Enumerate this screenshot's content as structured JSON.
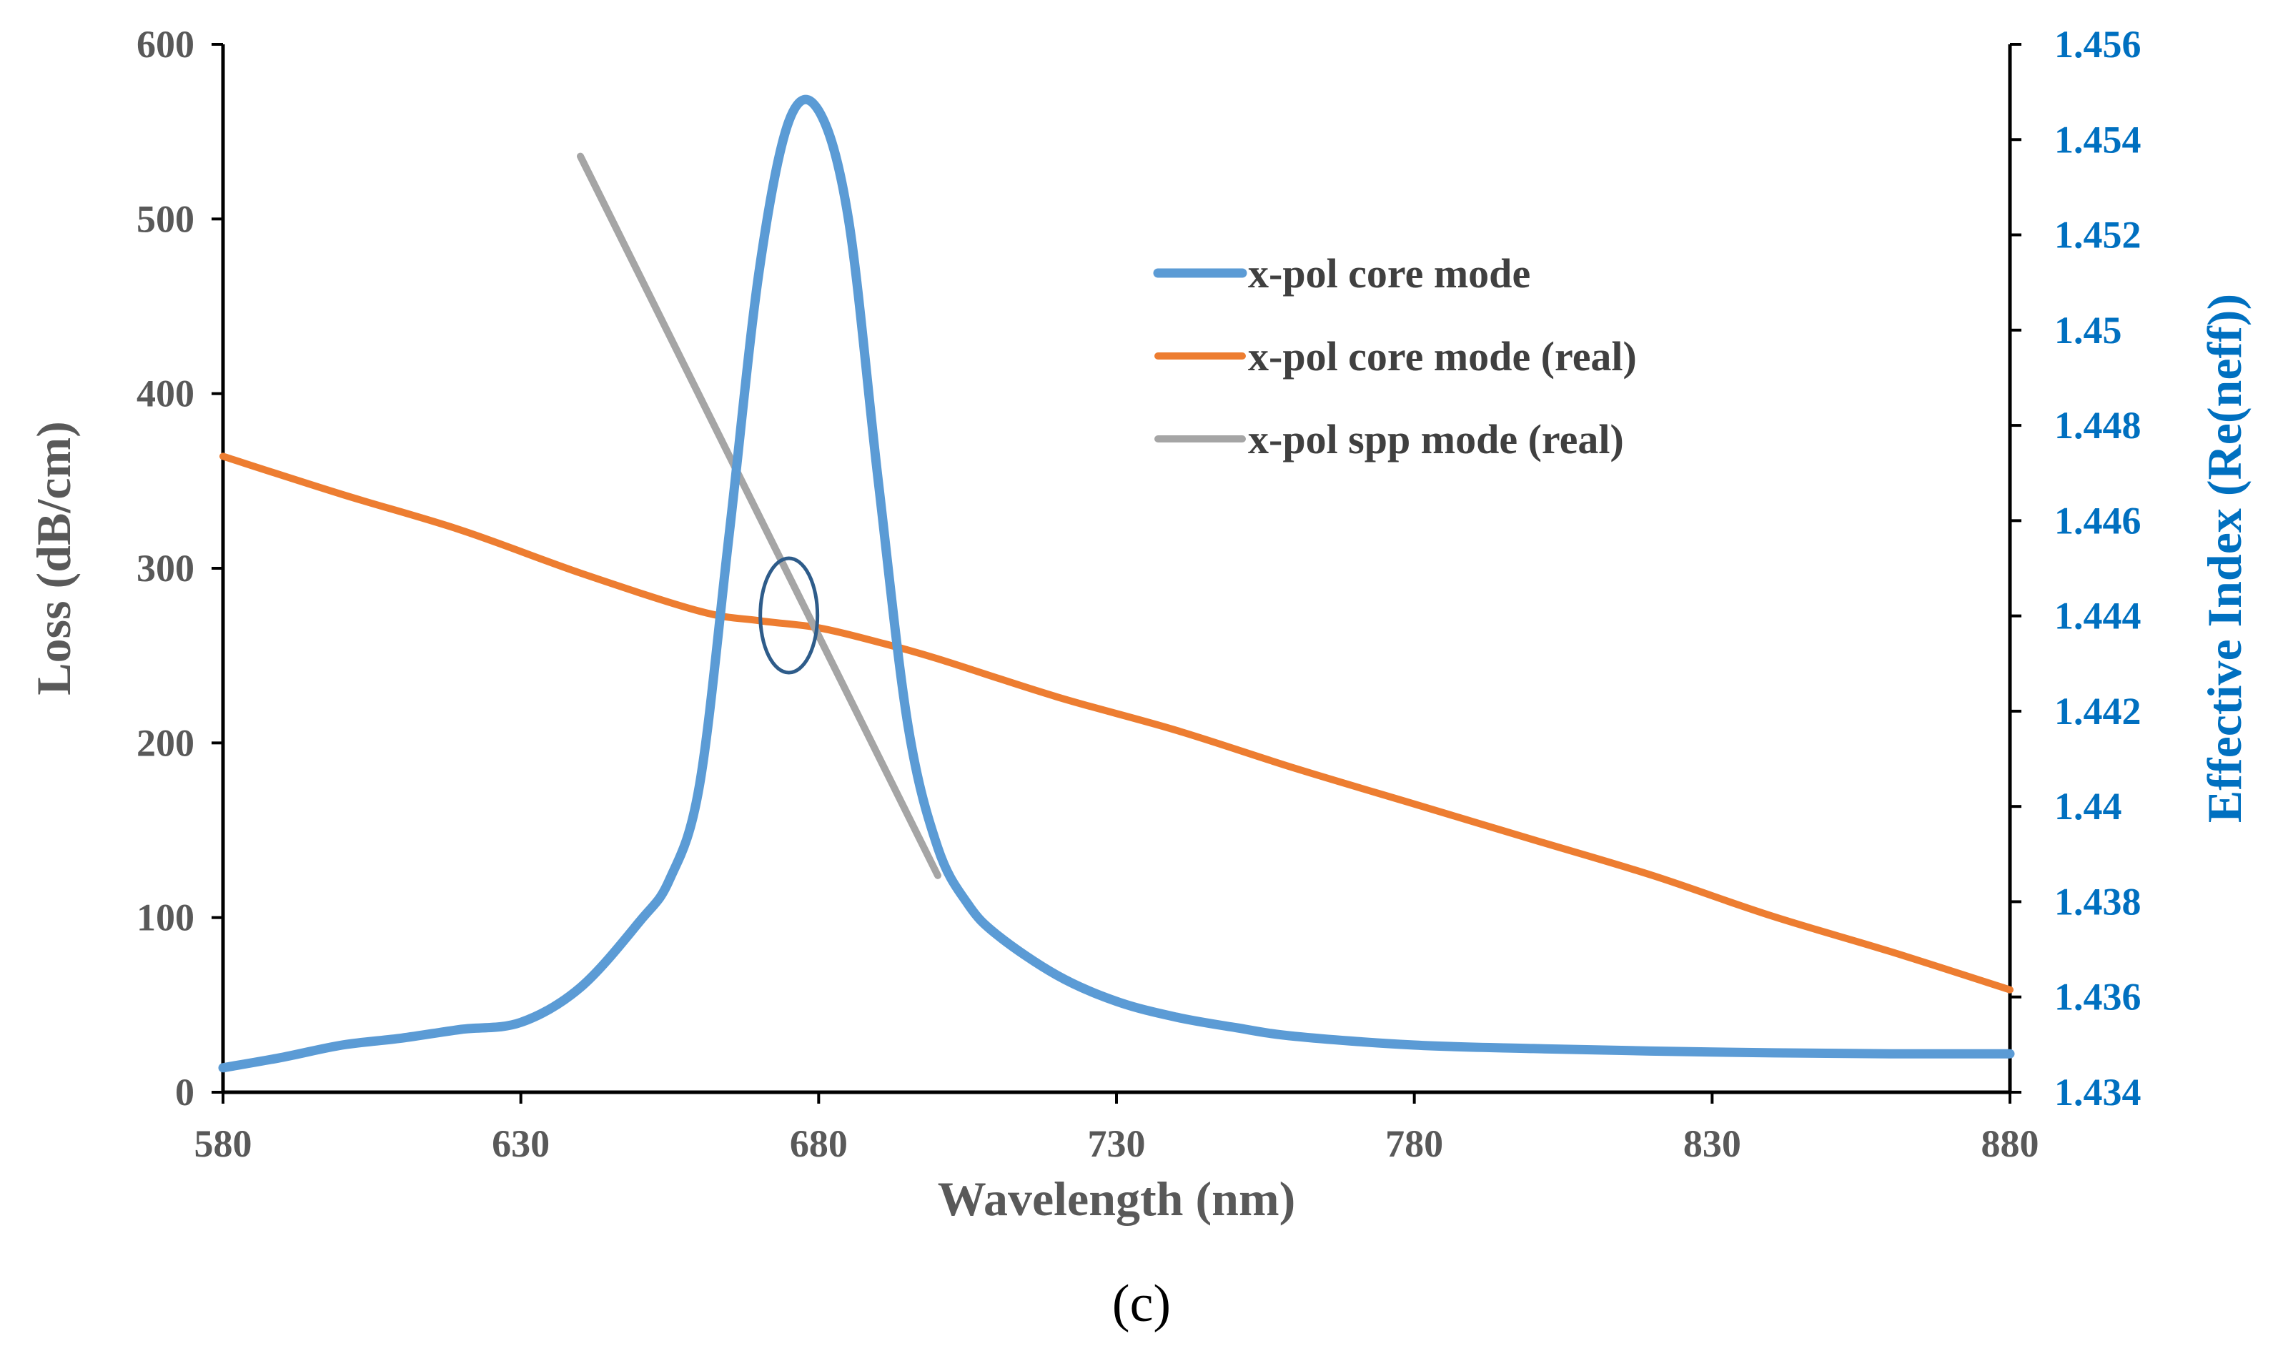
{
  "chart_data": {
    "type": "line",
    "caption": "(c)",
    "xlabel": "Wavelength (nm)",
    "ylabel_left": "Loss (dB/cm)",
    "ylabel_right": "Effective Index (Re(neff))",
    "xlim": [
      580,
      880
    ],
    "ylim_left": [
      0,
      600
    ],
    "ylim_right": [
      1.434,
      1.456
    ],
    "x_ticks": [
      "580",
      "630",
      "680",
      "730",
      "780",
      "830",
      "880"
    ],
    "y_left_ticks": [
      "0",
      "100",
      "200",
      "300",
      "400",
      "500",
      "600"
    ],
    "y_right_ticks": [
      "1.434",
      "1.436",
      "1.438",
      "1.44",
      "1.442",
      "1.444",
      "1.446",
      "1.448",
      "1.45",
      "1.452",
      "1.454",
      "1.456"
    ],
    "legend_position": "upper-right",
    "grid": false,
    "series": [
      {
        "name": "x-pol core mode",
        "axis": "left",
        "color": "#5b9bd5",
        "x": [
          580,
          590,
          600,
          610,
          620,
          630,
          640,
          650,
          655,
          660,
          665,
          670,
          675,
          680,
          685,
          690,
          695,
          700,
          705,
          710,
          720,
          730,
          740,
          750,
          760,
          780,
          800,
          830,
          860,
          880
        ],
        "y": [
          14,
          20,
          27,
          31,
          36,
          40,
          60,
          98,
          122,
          176,
          320,
          470,
          556,
          562,
          500,
          350,
          210,
          140,
          108,
          90,
          67,
          52,
          43,
          37,
          32,
          27,
          25,
          23,
          22,
          22
        ]
      },
      {
        "name": "x-pol core mode (real)",
        "axis": "right",
        "color": "#ed7d31",
        "x": [
          580,
          600,
          620,
          640,
          660,
          670,
          680,
          690,
          700,
          720,
          740,
          760,
          780,
          800,
          820,
          840,
          860,
          880
        ],
        "y": [
          1.44735,
          1.44655,
          1.4458,
          1.4449,
          1.4441,
          1.4439,
          1.44375,
          1.44345,
          1.4431,
          1.4423,
          1.4416,
          1.4408,
          1.44005,
          1.4393,
          1.43855,
          1.4377,
          1.43695,
          1.43615
        ]
      },
      {
        "name": "x-pol spp mode (real)",
        "axis": "right",
        "color": "#a5a5a5",
        "x": [
          640,
          700
        ],
        "y": [
          1.45365,
          1.43855
        ]
      }
    ],
    "annotations": [
      {
        "type": "ellipse",
        "x": 675,
        "y_left": 273,
        "color": "#2e5c8a",
        "note": "crossing point marker"
      }
    ]
  }
}
